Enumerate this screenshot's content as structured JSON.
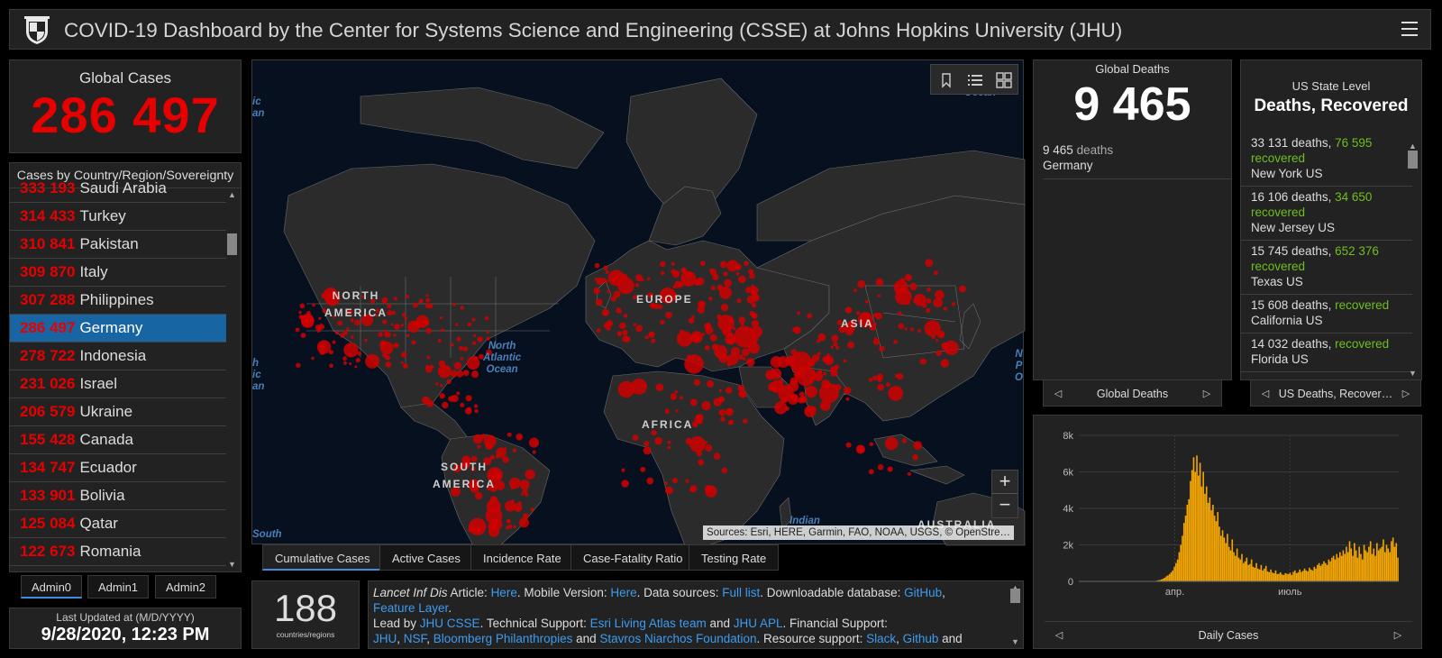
{
  "header": {
    "title": "COVID-19 Dashboard by the Center for Systems Science and Engineering (CSSE) at Johns Hopkins University (JHU)"
  },
  "global_cases": {
    "label": "Global Cases",
    "value": "286 497"
  },
  "country_list": {
    "header": "Cases by Country/Region/Sovereignty",
    "rows": [
      {
        "num": "333 193",
        "country": "Saudi Arabia"
      },
      {
        "num": "314 433",
        "country": "Turkey"
      },
      {
        "num": "310 841",
        "country": "Pakistan"
      },
      {
        "num": "309 870",
        "country": "Italy"
      },
      {
        "num": "307 288",
        "country": "Philippines"
      },
      {
        "num": "286 497",
        "country": "Germany",
        "selected": true
      },
      {
        "num": "278 722",
        "country": "Indonesia"
      },
      {
        "num": "231 026",
        "country": "Israel"
      },
      {
        "num": "206 579",
        "country": "Ukraine"
      },
      {
        "num": "155 428",
        "country": "Canada"
      },
      {
        "num": "134 747",
        "country": "Ecuador"
      },
      {
        "num": "133 901",
        "country": "Bolivia"
      },
      {
        "num": "125 084",
        "country": "Qatar"
      },
      {
        "num": "122 673",
        "country": "Romania"
      }
    ]
  },
  "admin_tabs": [
    "Admin0",
    "Admin1",
    "Admin2"
  ],
  "last_updated": {
    "label": "Last Updated at (M/D/YYYY)",
    "value": "9/28/2020, 12:23 PM"
  },
  "map": {
    "labels": {
      "north_america": "NORTH\nAMERICA",
      "south_america": "SOUTH\nAMERICA",
      "europe": "EUROPE",
      "africa": "AFRICA",
      "asia": "ASIA",
      "australia": "AUSTRALIA"
    },
    "ocean_labels": {
      "north_atlantic": "North\nAtlantic\nOcean",
      "indian": "Indian",
      "south": "South",
      "left_top": "ic\nan",
      "left_mid": "h\nic\nan",
      "right_top": "Ocean",
      "right_mid": "N\nP\nO"
    },
    "attribution": "Sources: Esri, HERE, Garmin, FAO, NOAA, USGS, © OpenStre…",
    "zoom_in": "+",
    "zoom_out": "−",
    "tabs": [
      "Cumulative Cases",
      "Active Cases",
      "Incidence Rate",
      "Case-Fatality Ratio",
      "Testing Rate"
    ]
  },
  "countries_count": {
    "value": "188",
    "label": "countries/regions"
  },
  "info": {
    "l1a": "Lancet Inf Dis",
    "l1b": " Article: ",
    "l1c": "Here",
    "l1d": ". Mobile Version: ",
    "l1e": "Here",
    "l1f": ". Data sources: ",
    "l1g": "Full list",
    "l1h": ". Downloadable database: ",
    "l1i": "GitHub",
    "l1j": ",",
    "l2a": "Feature Layer",
    "l2b": ".",
    "l3a": "Lead by ",
    "l3b": "JHU CSSE",
    "l3c": ". Technical Support: ",
    "l3d": "Esri Living Atlas team",
    "l3e": " and ",
    "l3f": "JHU APL",
    "l3g": ". Financial Support:",
    "l4a": "JHU",
    "l4b": ", ",
    "l4c": "NSF",
    "l4d": ", ",
    "l4e": "Bloomberg Philanthropies",
    "l4f": " and ",
    "l4g": "Stavros Niarchos Foundation",
    "l4h": ". Resource support: ",
    "l4i": "Slack",
    "l4j": ", ",
    "l4k": "Github",
    "l4l": " and"
  },
  "global_deaths": {
    "label": "Global Deaths",
    "value": "9 465",
    "row_num": "9 465",
    "row_word": "deaths",
    "row_country": "Germany",
    "nav_label": "Global Deaths"
  },
  "us_state": {
    "label": "US State Level",
    "title": "Deaths, Recovered",
    "rows": [
      {
        "deaths": "33 131 deaths,",
        "rec": "76 595",
        "rec_word": "recovered",
        "state": "New York US"
      },
      {
        "deaths": "16 106 deaths,",
        "rec": "34 650",
        "rec_word": "recovered",
        "state": "New Jersey US"
      },
      {
        "deaths": "15 745 deaths,",
        "rec": "652 376",
        "rec_word": "recovered",
        "state": "Texas US"
      },
      {
        "deaths": "15 608 deaths,",
        "rec": "",
        "rec_word": "recovered",
        "state": "California US"
      },
      {
        "deaths": "14 032 deaths,",
        "rec": "",
        "rec_word": "recovered",
        "state": "Florida US"
      }
    ],
    "nav_label": "US Deaths, Recover…"
  },
  "daily": {
    "nav_label": "Daily Cases"
  },
  "chart_data": {
    "type": "bar",
    "title": "",
    "xlabel": "",
    "ylabel": "",
    "ylim": [
      0,
      8000
    ],
    "yticks": [
      "0",
      "2k",
      "4k",
      "6k",
      "8k"
    ],
    "xticks": [
      "апр.",
      "июль"
    ],
    "color": "#f5a700",
    "values": [
      0,
      0,
      0,
      0,
      0,
      0,
      0,
      0,
      0,
      0,
      0,
      0,
      0,
      0,
      0,
      0,
      0,
      0,
      0,
      0,
      0,
      0,
      0,
      0,
      0,
      0,
      0,
      0,
      0,
      0,
      0,
      0,
      0,
      0,
      0,
      0,
      0,
      0,
      0,
      0,
      0,
      0,
      0,
      0,
      2,
      5,
      10,
      20,
      35,
      60,
      80,
      110,
      150,
      200,
      280,
      330,
      400,
      500,
      600,
      800,
      1000,
      1200,
      1600,
      2000,
      2500,
      3200,
      3600,
      4200,
      4500,
      5500,
      6100,
      6800,
      6000,
      6900,
      5800,
      6500,
      5200,
      6000,
      4800,
      5200,
      4300,
      4600,
      3900,
      4200,
      3600,
      3300,
      3800,
      3000,
      2500,
      2800,
      2400,
      2100,
      2600,
      1900,
      1700,
      2300,
      1600,
      1400,
      1800,
      1300,
      1200,
      1500,
      1000,
      1100,
      1300,
      900,
      950,
      1200,
      800,
      750,
      1000,
      700,
      650,
      900,
      600,
      700,
      850,
      550,
      500,
      650,
      480,
      450,
      600,
      400,
      420,
      500,
      380,
      350,
      450,
      420,
      400,
      480,
      350,
      520,
      600,
      450,
      500,
      650,
      520,
      580,
      700,
      600,
      550,
      750,
      650,
      600,
      800,
      700,
      900,
      1000,
      850,
      950,
      1100,
      1000,
      900,
      1200,
      1100,
      1300,
      1400,
      1200,
      1500,
      1300,
      1600,
      1400,
      1700,
      1500,
      1900,
      1600,
      2200,
      1800,
      1400,
      2100,
      1700,
      1300,
      1900,
      1500,
      1200,
      2000,
      1700,
      1600,
      1900,
      2200,
      1500,
      1800,
      1400,
      2100,
      1700,
      1800,
      1900,
      2300,
      1600,
      2000,
      1800,
      1600,
      2200,
      2400,
      1900,
      2100,
      1300
    ]
  }
}
